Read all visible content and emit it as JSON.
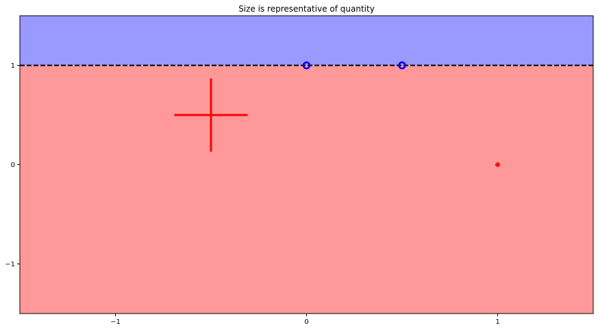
{
  "chart_data": {
    "type": "scatter",
    "title": "Size is representative of quantity",
    "xlabel": "",
    "ylabel": "",
    "xlim": [
      -1.5,
      1.5
    ],
    "ylim": [
      -1.5,
      1.5
    ],
    "x_ticks": [
      -1,
      0,
      1
    ],
    "y_ticks": [
      -1,
      0,
      1
    ],
    "x_tick_labels": [
      "−1",
      "0",
      "1"
    ],
    "y_tick_labels": [
      "−1",
      "0",
      "1"
    ],
    "grid": false,
    "decision_boundary": {
      "y": 1,
      "style": "dashed",
      "color": "#000000"
    },
    "regions": [
      {
        "name": "",
        "y_range": [
          1,
          1.5
        ],
        "color": "#9999ff"
      },
      {
        "name": "",
        "y_range": [
          -1.5,
          1
        ],
        "color": "#ff9999"
      }
    ],
    "series": [
      {
        "name": "",
        "marker": "plus",
        "color": "#ff0000",
        "points": [
          {
            "x": -0.5,
            "y": 0.5,
            "quantity": 15
          },
          {
            "x": 1,
            "y": 0,
            "quantity": 1
          }
        ]
      },
      {
        "name": "",
        "marker": "circle",
        "color": "#0000ff",
        "fill": "#800080",
        "points": [
          {
            "x": 0,
            "y": 1,
            "quantity": 1
          },
          {
            "x": 0.5,
            "y": 1,
            "quantity": 1
          }
        ]
      }
    ]
  }
}
